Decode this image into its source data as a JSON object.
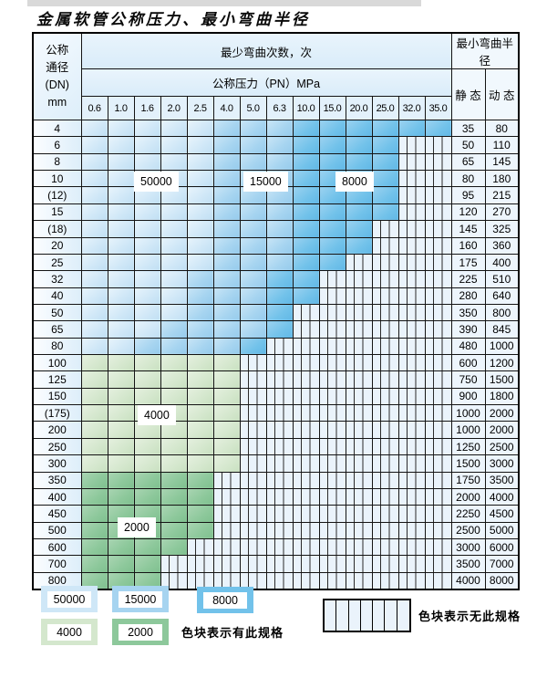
{
  "page": {
    "title": "金属软管公称压力、最小弯曲半径"
  },
  "colors": {
    "c1": "#cfe7f7",
    "c2": "#a6d4f0",
    "c3": "#72c2ea",
    "c4": "#d4e7cd",
    "c5": "#8dc89b",
    "c0": "#eaf3fb"
  },
  "table": {
    "corner": {
      "l1": "公称",
      "l2": "通径",
      "l3": "(DN)",
      "l4": "mm"
    },
    "header": {
      "bend_cycles": "最少弯曲次数，次",
      "pressure": "公称压力（PN）MPa",
      "radius": "最小弯曲半径",
      "static_label": "静 态",
      "dynamic_label": "动 态",
      "pressures": [
        "0.6",
        "1.0",
        "1.6",
        "2.0",
        "2.5",
        "4.0",
        "5.0",
        "6.3",
        "10.0",
        "15.0",
        "20.0",
        "25.0",
        "32.0",
        "35.0"
      ]
    },
    "state_meaning": {
      "0": "无此规格",
      "1": "50000",
      "2": "15000",
      "3": "8000",
      "4": "4000",
      "5": "2000"
    },
    "zone_labels": [
      "50000",
      "15000",
      "8000",
      "4000",
      "2000"
    ],
    "rows": [
      {
        "dn": "4",
        "cells": [
          1,
          1,
          1,
          1,
          1,
          2,
          2,
          2,
          3,
          3,
          3,
          3,
          3,
          3
        ],
        "static": "35",
        "dynamic": "80"
      },
      {
        "dn": "6",
        "cells": [
          1,
          1,
          1,
          1,
          1,
          2,
          2,
          2,
          3,
          3,
          3,
          3,
          0,
          0
        ],
        "static": "50",
        "dynamic": "110"
      },
      {
        "dn": "8",
        "cells": [
          1,
          1,
          1,
          1,
          1,
          2,
          2,
          2,
          3,
          3,
          3,
          3,
          0,
          0
        ],
        "static": "65",
        "dynamic": "145"
      },
      {
        "dn": "10",
        "cells": [
          1,
          1,
          1,
          1,
          1,
          2,
          2,
          2,
          3,
          3,
          3,
          3,
          0,
          0
        ],
        "static": "80",
        "dynamic": "180"
      },
      {
        "dn": "(12)",
        "cells": [
          1,
          1,
          1,
          1,
          1,
          2,
          2,
          2,
          3,
          3,
          3,
          3,
          0,
          0
        ],
        "static": "95",
        "dynamic": "215"
      },
      {
        "dn": "15",
        "cells": [
          1,
          1,
          1,
          1,
          1,
          2,
          2,
          2,
          3,
          3,
          3,
          3,
          0,
          0
        ],
        "static": "120",
        "dynamic": "270"
      },
      {
        "dn": "(18)",
        "cells": [
          1,
          1,
          1,
          1,
          1,
          2,
          2,
          2,
          3,
          3,
          3,
          0,
          0,
          0
        ],
        "static": "145",
        "dynamic": "325"
      },
      {
        "dn": "20",
        "cells": [
          1,
          1,
          1,
          1,
          1,
          2,
          2,
          2,
          3,
          3,
          3,
          0,
          0,
          0
        ],
        "static": "160",
        "dynamic": "360"
      },
      {
        "dn": "25",
        "cells": [
          1,
          1,
          1,
          1,
          1,
          2,
          2,
          2,
          3,
          3,
          0,
          0,
          0,
          0
        ],
        "static": "175",
        "dynamic": "400"
      },
      {
        "dn": "32",
        "cells": [
          1,
          1,
          1,
          1,
          2,
          2,
          2,
          3,
          3,
          0,
          0,
          0,
          0,
          0
        ],
        "static": "225",
        "dynamic": "510"
      },
      {
        "dn": "40",
        "cells": [
          1,
          1,
          1,
          1,
          2,
          2,
          2,
          3,
          3,
          0,
          0,
          0,
          0,
          0
        ],
        "static": "280",
        "dynamic": "640"
      },
      {
        "dn": "50",
        "cells": [
          1,
          1,
          1,
          1,
          2,
          2,
          2,
          3,
          0,
          0,
          0,
          0,
          0,
          0
        ],
        "static": "350",
        "dynamic": "800"
      },
      {
        "dn": "65",
        "cells": [
          1,
          1,
          1,
          2,
          2,
          2,
          2,
          3,
          0,
          0,
          0,
          0,
          0,
          0
        ],
        "static": "390",
        "dynamic": "845"
      },
      {
        "dn": "80",
        "cells": [
          1,
          1,
          2,
          2,
          2,
          2,
          3,
          0,
          0,
          0,
          0,
          0,
          0,
          0
        ],
        "static": "480",
        "dynamic": "1000"
      },
      {
        "dn": "100",
        "cells": [
          4,
          4,
          4,
          4,
          4,
          4,
          0,
          0,
          0,
          0,
          0,
          0,
          0,
          0
        ],
        "static": "600",
        "dynamic": "1200"
      },
      {
        "dn": "125",
        "cells": [
          4,
          4,
          4,
          4,
          4,
          4,
          0,
          0,
          0,
          0,
          0,
          0,
          0,
          0
        ],
        "static": "750",
        "dynamic": "1500"
      },
      {
        "dn": "150",
        "cells": [
          4,
          4,
          4,
          4,
          4,
          4,
          0,
          0,
          0,
          0,
          0,
          0,
          0,
          0
        ],
        "static": "900",
        "dynamic": "1800"
      },
      {
        "dn": "(175)",
        "cells": [
          4,
          4,
          4,
          4,
          4,
          4,
          0,
          0,
          0,
          0,
          0,
          0,
          0,
          0
        ],
        "static": "1000",
        "dynamic": "2000"
      },
      {
        "dn": "200",
        "cells": [
          4,
          4,
          4,
          4,
          4,
          4,
          0,
          0,
          0,
          0,
          0,
          0,
          0,
          0
        ],
        "static": "1000",
        "dynamic": "2000"
      },
      {
        "dn": "250",
        "cells": [
          4,
          4,
          4,
          4,
          4,
          4,
          0,
          0,
          0,
          0,
          0,
          0,
          0,
          0
        ],
        "static": "1250",
        "dynamic": "2500"
      },
      {
        "dn": "300",
        "cells": [
          4,
          4,
          4,
          4,
          4,
          4,
          0,
          0,
          0,
          0,
          0,
          0,
          0,
          0
        ],
        "static": "1500",
        "dynamic": "3000"
      },
      {
        "dn": "350",
        "cells": [
          5,
          5,
          5,
          5,
          5,
          0,
          0,
          0,
          0,
          0,
          0,
          0,
          0,
          0
        ],
        "static": "1750",
        "dynamic": "3500"
      },
      {
        "dn": "400",
        "cells": [
          5,
          5,
          5,
          5,
          5,
          0,
          0,
          0,
          0,
          0,
          0,
          0,
          0,
          0
        ],
        "static": "2000",
        "dynamic": "4000"
      },
      {
        "dn": "450",
        "cells": [
          5,
          5,
          5,
          5,
          5,
          0,
          0,
          0,
          0,
          0,
          0,
          0,
          0,
          0
        ],
        "static": "2250",
        "dynamic": "4500"
      },
      {
        "dn": "500",
        "cells": [
          5,
          5,
          5,
          5,
          5,
          0,
          0,
          0,
          0,
          0,
          0,
          0,
          0,
          0
        ],
        "static": "2500",
        "dynamic": "5000"
      },
      {
        "dn": "600",
        "cells": [
          5,
          5,
          5,
          5,
          0,
          0,
          0,
          0,
          0,
          0,
          0,
          0,
          0,
          0
        ],
        "static": "3000",
        "dynamic": "6000"
      },
      {
        "dn": "700",
        "cells": [
          5,
          5,
          5,
          0,
          0,
          0,
          0,
          0,
          0,
          0,
          0,
          0,
          0,
          0
        ],
        "static": "3500",
        "dynamic": "7000"
      },
      {
        "dn": "800",
        "cells": [
          5,
          5,
          5,
          0,
          0,
          0,
          0,
          0,
          0,
          0,
          0,
          0,
          0,
          0
        ],
        "static": "4000",
        "dynamic": "8000"
      }
    ]
  },
  "legend": {
    "items": [
      {
        "label": "50000",
        "state": 1
      },
      {
        "label": "15000",
        "state": 2
      },
      {
        "label": "8000",
        "state": 3
      },
      {
        "label": "4000",
        "state": 4
      },
      {
        "label": "2000",
        "state": 5
      }
    ],
    "has_spec_text": "色块表示有此规格",
    "no_spec_text": "色块表示无此规格"
  }
}
